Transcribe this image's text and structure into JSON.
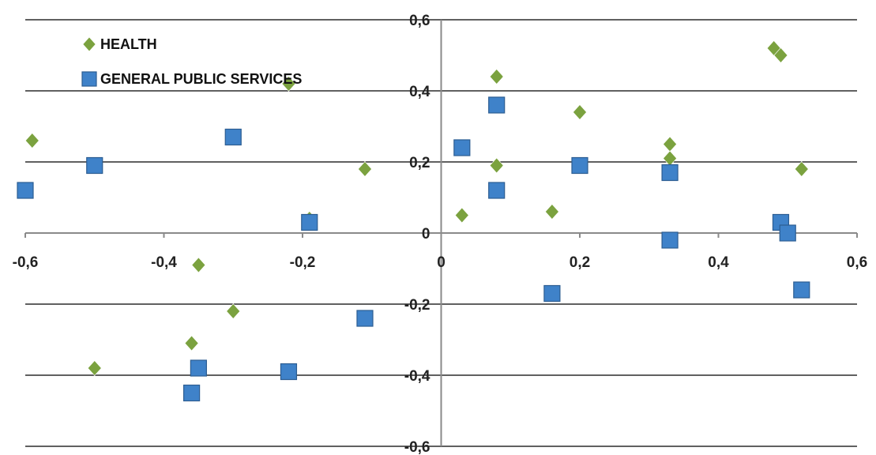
{
  "chart_data": {
    "type": "scatter",
    "title": "",
    "xlabel": "",
    "ylabel": "",
    "xlim": [
      -0.6,
      0.6
    ],
    "ylim": [
      -0.6,
      0.6
    ],
    "grid": "horizontal",
    "legend": "top-left",
    "x_ticks": [
      "-0,6",
      "-0,4",
      "-0,2",
      "0",
      "0,2",
      "0,4",
      "0,6"
    ],
    "y_ticks": [
      "0,6",
      "0,4",
      "0,2",
      "0",
      "-0,2",
      "-0,4",
      "-0,6"
    ],
    "series": [
      {
        "name": "HEALTH",
        "marker": "diamond",
        "color": "#7BA23F",
        "points": [
          [
            -0.59,
            0.26
          ],
          [
            -0.22,
            0.42
          ],
          [
            -0.11,
            0.18
          ],
          [
            -0.35,
            -0.09
          ],
          [
            -0.3,
            -0.22
          ],
          [
            -0.36,
            -0.31
          ],
          [
            -0.5,
            -0.38
          ],
          [
            -0.19,
            0.04
          ],
          [
            0.03,
            0.05
          ],
          [
            0.08,
            0.44
          ],
          [
            0.08,
            0.19
          ],
          [
            0.2,
            0.34
          ],
          [
            0.16,
            0.06
          ],
          [
            0.33,
            0.25
          ],
          [
            0.33,
            0.21
          ],
          [
            0.48,
            0.52
          ],
          [
            0.49,
            0.5
          ],
          [
            0.52,
            0.18
          ]
        ]
      },
      {
        "name": "GENERAL PUBLIC SERVICES",
        "marker": "square",
        "color": "#3F82C9",
        "points": [
          [
            -0.6,
            0.12
          ],
          [
            -0.5,
            0.19
          ],
          [
            -0.3,
            0.27
          ],
          [
            -0.19,
            0.03
          ],
          [
            -0.11,
            -0.24
          ],
          [
            -0.22,
            -0.39
          ],
          [
            -0.35,
            -0.38
          ],
          [
            -0.36,
            -0.45
          ],
          [
            0.03,
            0.24
          ],
          [
            0.08,
            0.36
          ],
          [
            0.08,
            0.12
          ],
          [
            0.2,
            0.19
          ],
          [
            0.33,
            0.17
          ],
          [
            0.33,
            -0.02
          ],
          [
            0.16,
            -0.17
          ],
          [
            0.49,
            0.03
          ],
          [
            0.5,
            0.0
          ],
          [
            0.52,
            -0.16
          ]
        ]
      }
    ]
  }
}
